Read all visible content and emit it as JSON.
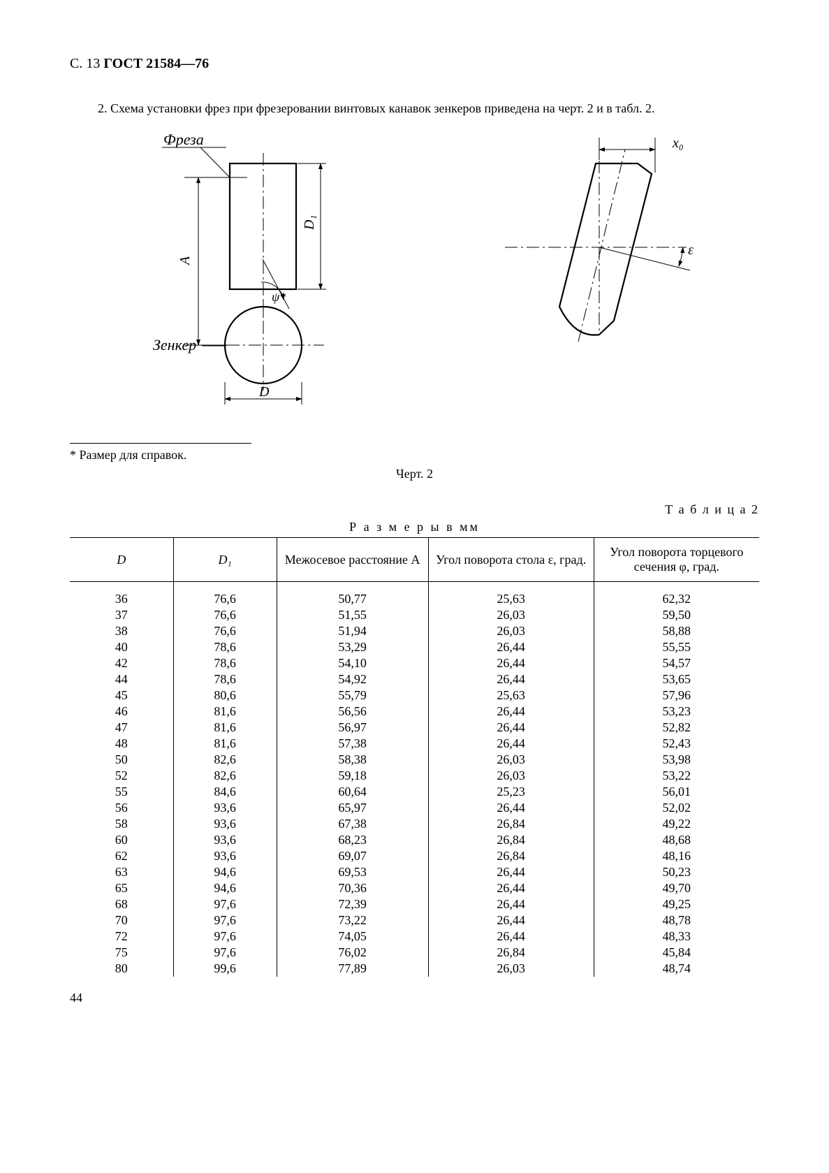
{
  "header": {
    "page_label": "С. 13",
    "standard": "ГОСТ 21584—76"
  },
  "paragraph": "2. Схема установки фрез при фрезеровании винтовых канавок зенкеров приведена на черт. 2 и в табл. 2.",
  "figure": {
    "left_top_label": "Фреза",
    "left_bottom_label": "Зенкер",
    "dim_A": "A",
    "dim_D": "D",
    "dim_D1": "D₁",
    "angle_psi": "ψ*",
    "right_x0": "x₀",
    "right_eps": "ε",
    "footnote": "* Размер для справок.",
    "caption": "Черт. 2"
  },
  "table": {
    "label": "Т а б л и ц а  2",
    "units": "Р а з м е р ы  в  мм",
    "columns": [
      "D",
      "D₁",
      "Межосевое расстояние A",
      "Угол поворота стола ε, град.",
      "Угол поворота торцевого сечения φ, град."
    ],
    "rows": [
      [
        "36",
        "76,6",
        "50,77",
        "25,63",
        "62,32"
      ],
      [
        "37",
        "76,6",
        "51,55",
        "26,03",
        "59,50"
      ],
      [
        "38",
        "76,6",
        "51,94",
        "26,03",
        "58,88"
      ],
      [
        "40",
        "78,6",
        "53,29",
        "26,44",
        "55,55"
      ],
      [
        "42",
        "78,6",
        "54,10",
        "26,44",
        "54,57"
      ],
      [
        "44",
        "78,6",
        "54,92",
        "26,44",
        "53,65"
      ],
      [
        "45",
        "80,6",
        "55,79",
        "25,63",
        "57,96"
      ],
      [
        "46",
        "81,6",
        "56,56",
        "26,44",
        "53,23"
      ],
      [
        "47",
        "81,6",
        "56,97",
        "26,44",
        "52,82"
      ],
      [
        "48",
        "81,6",
        "57,38",
        "26,44",
        "52,43"
      ],
      [
        "50",
        "82,6",
        "58,38",
        "26,03",
        "53,98"
      ],
      [
        "52",
        "82,6",
        "59,18",
        "26,03",
        "53,22"
      ],
      [
        "55",
        "84,6",
        "60,64",
        "25,23",
        "56,01"
      ],
      [
        "56",
        "93,6",
        "65,97",
        "26,44",
        "52,02"
      ],
      [
        "58",
        "93,6",
        "67,38",
        "26,84",
        "49,22"
      ],
      [
        "60",
        "93,6",
        "68,23",
        "26,84",
        "48,68"
      ],
      [
        "62",
        "93,6",
        "69,07",
        "26,84",
        "48,16"
      ],
      [
        "63",
        "94,6",
        "69,53",
        "26,44",
        "50,23"
      ],
      [
        "65",
        "94,6",
        "70,36",
        "26,44",
        "49,70"
      ],
      [
        "68",
        "97,6",
        "72,39",
        "26,44",
        "49,25"
      ],
      [
        "70",
        "97,6",
        "73,22",
        "26,44",
        "48,78"
      ],
      [
        "72",
        "97,6",
        "74,05",
        "26,44",
        "48,33"
      ],
      [
        "75",
        "97,6",
        "76,02",
        "26,84",
        "45,84"
      ],
      [
        "80",
        "99,6",
        "77,89",
        "26,03",
        "48,74"
      ]
    ]
  },
  "page_number": "44"
}
